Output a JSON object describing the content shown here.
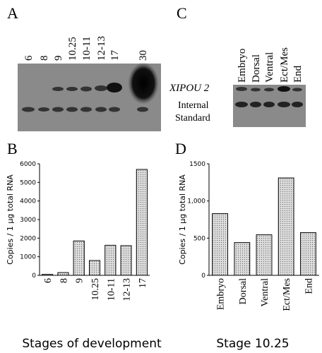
{
  "panels": {
    "a": {
      "label": "A",
      "lanes": [
        "6",
        "8",
        "9",
        "10.25",
        "10-11",
        "12-13",
        "17",
        "30"
      ]
    },
    "c": {
      "label": "C",
      "lanes": [
        "Embryo",
        "Dorsal",
        "Ventral",
        "Ect/Mes",
        "End"
      ],
      "gene": "XIPOU 2",
      "standard": [
        "Internal",
        "Standard"
      ]
    }
  },
  "chart_data": [
    {
      "type": "bar",
      "panel_label": "B",
      "ylabel": "Copies / 1 µg total RNA",
      "xlabel": "Stages of development",
      "categories": [
        "6",
        "8",
        "9",
        "10.25",
        "10-11",
        "12-13",
        "17"
      ],
      "values": [
        50,
        150,
        1850,
        800,
        1620,
        1600,
        5700
      ],
      "color": "#dcdcdc",
      "ylim": [
        0,
        6000
      ],
      "yticks": [
        0,
        1000,
        2000,
        3000,
        4000,
        5000,
        6000
      ]
    },
    {
      "type": "bar",
      "panel_label": "D",
      "ylabel": "Copies / 1 µg total RNA",
      "xlabel": "Stage 10.25",
      "categories": [
        "Embryo",
        "Dorsal",
        "Ventral",
        "Ect/Mes",
        "End"
      ],
      "values": [
        830,
        440,
        545,
        1310,
        575
      ],
      "color": "#dcdcdc",
      "ylim": [
        0,
        1500
      ],
      "yticks": [
        0,
        500,
        {
          "value": 1000,
          "label": "1,000"
        },
        1500
      ]
    }
  ]
}
